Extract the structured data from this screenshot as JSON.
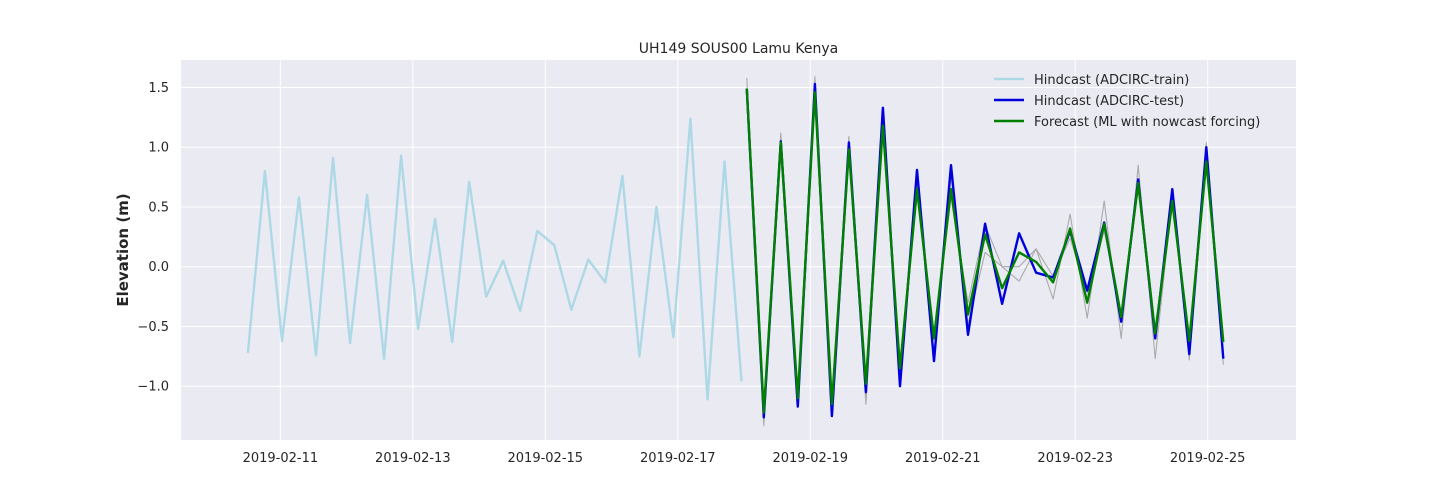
{
  "chart_data": {
    "type": "line",
    "title": "UH149 SOUS00 Lamu Kenya",
    "xlabel": "",
    "ylabel": "Elevation (m)",
    "xlim": [
      "2019-02-09T12:00",
      "2019-02-26T08:00"
    ],
    "ylim": [
      -1.45,
      1.73
    ],
    "x_ticks": [
      "2019-02-11",
      "2019-02-13",
      "2019-02-15",
      "2019-02-17",
      "2019-02-19",
      "2019-02-21",
      "2019-02-23",
      "2019-02-25"
    ],
    "y_ticks": [
      -1.0,
      -0.5,
      0.0,
      0.5,
      1.0,
      1.5
    ],
    "y_tick_labels": [
      "−1.0",
      "−0.5",
      "0.0",
      "0.5",
      "1.0",
      "1.5"
    ],
    "grid": true,
    "legend_position": "upper right",
    "background": "#eaeaf2",
    "series": [
      {
        "name": "Hindcast (ADCIRC-train)",
        "color": "#add8e6",
        "x": [
          "2019-02-10T12:15",
          "2019-02-10T18:25",
          "2019-02-11T00:35",
          "2019-02-11T06:45",
          "2019-02-11T12:55",
          "2019-02-11T19:05",
          "2019-02-12T01:15",
          "2019-02-12T07:25",
          "2019-02-12T13:35",
          "2019-02-12T19:45",
          "2019-02-13T01:55",
          "2019-02-13T08:05",
          "2019-02-13T14:15",
          "2019-02-13T20:25",
          "2019-02-14T02:35",
          "2019-02-14T08:45",
          "2019-02-14T14:55",
          "2019-02-14T21:05",
          "2019-02-15T03:15",
          "2019-02-15T09:25",
          "2019-02-15T15:35",
          "2019-02-15T21:45",
          "2019-02-16T03:55",
          "2019-02-16T10:05",
          "2019-02-16T16:15",
          "2019-02-16T22:25",
          "2019-02-17T04:35",
          "2019-02-17T10:45",
          "2019-02-17T16:55",
          "2019-02-17T23:05"
        ],
        "y": [
          -0.72,
          0.8,
          -0.62,
          0.58,
          -0.74,
          0.91,
          -0.64,
          0.6,
          -0.77,
          0.93,
          -0.52,
          0.4,
          -0.63,
          0.71,
          -0.25,
          0.05,
          -0.37,
          0.3,
          0.18,
          -0.36,
          0.06,
          -0.13,
          0.76,
          -0.75,
          0.5,
          -0.59,
          1.24,
          -1.11,
          0.88,
          -0.96
        ]
      },
      {
        "name": "Hindcast (ADCIRC-test)",
        "color": "#0000dd",
        "x": [
          "2019-02-18T01:00",
          "2019-02-18T07:10",
          "2019-02-18T13:20",
          "2019-02-18T19:30",
          "2019-02-19T01:40",
          "2019-02-19T07:50",
          "2019-02-19T14:00",
          "2019-02-19T20:10",
          "2019-02-20T02:20",
          "2019-02-20T08:30",
          "2019-02-20T14:40",
          "2019-02-20T20:50",
          "2019-02-21T03:00",
          "2019-02-21T09:10",
          "2019-02-21T15:20",
          "2019-02-21T21:30",
          "2019-02-22T03:40",
          "2019-02-22T09:50",
          "2019-02-22T16:00",
          "2019-02-22T22:10",
          "2019-02-23T04:20",
          "2019-02-23T10:30",
          "2019-02-23T16:40",
          "2019-02-23T22:50",
          "2019-02-24T05:00",
          "2019-02-24T11:10",
          "2019-02-24T17:20",
          "2019-02-24T23:30",
          "2019-02-25T05:40"
        ],
        "y": [
          1.49,
          -1.26,
          1.05,
          -1.17,
          1.53,
          -1.25,
          1.04,
          -1.05,
          1.33,
          -1.0,
          0.81,
          -0.79,
          0.85,
          -0.57,
          0.36,
          -0.31,
          0.28,
          -0.05,
          -0.09,
          0.3,
          -0.2,
          0.37,
          -0.46,
          0.73,
          -0.6,
          0.65,
          -0.73,
          1.0,
          -0.77
        ]
      },
      {
        "name": "Forecast (ML with nowcast forcing)",
        "color": "#008000",
        "x": [
          "2019-02-18T01:00",
          "2019-02-18T07:10",
          "2019-02-18T13:20",
          "2019-02-18T19:30",
          "2019-02-19T01:40",
          "2019-02-19T07:50",
          "2019-02-19T14:00",
          "2019-02-19T20:10",
          "2019-02-20T02:20",
          "2019-02-20T08:30",
          "2019-02-20T14:40",
          "2019-02-20T20:50",
          "2019-02-21T03:00",
          "2019-02-21T09:10",
          "2019-02-21T15:20",
          "2019-02-21T21:30",
          "2019-02-22T03:40",
          "2019-02-22T09:50",
          "2019-02-22T16:00",
          "2019-02-22T22:10",
          "2019-02-23T04:20",
          "2019-02-23T10:30",
          "2019-02-23T16:40",
          "2019-02-23T22:50",
          "2019-02-24T05:00",
          "2019-02-24T11:10",
          "2019-02-24T17:20",
          "2019-02-24T23:30",
          "2019-02-25T05:40"
        ],
        "y": [
          1.49,
          -1.22,
          1.04,
          -1.1,
          1.46,
          -1.15,
          0.98,
          -0.98,
          1.18,
          -0.85,
          0.65,
          -0.6,
          0.65,
          -0.4,
          0.27,
          -0.18,
          0.12,
          0.04,
          -0.13,
          0.32,
          -0.3,
          0.36,
          -0.42,
          0.7,
          -0.56,
          0.55,
          -0.62,
          0.88,
          -0.63
        ]
      }
    ],
    "unlabeled_series": [
      {
        "color": "#aaaaaa",
        "x": [
          "2019-02-18T01:00",
          "2019-02-18T07:10",
          "2019-02-18T13:20",
          "2019-02-18T19:30",
          "2019-02-19T01:40",
          "2019-02-19T07:50",
          "2019-02-19T14:00",
          "2019-02-19T20:10",
          "2019-02-20T02:20",
          "2019-02-20T08:30",
          "2019-02-20T14:40",
          "2019-02-20T20:50",
          "2019-02-21T03:00",
          "2019-02-21T09:10",
          "2019-02-21T15:20",
          "2019-02-21T21:30",
          "2019-02-22T03:40",
          "2019-02-22T09:50",
          "2019-02-22T16:00",
          "2019-02-22T22:10",
          "2019-02-23T04:20",
          "2019-02-23T10:30",
          "2019-02-23T16:40",
          "2019-02-23T22:50",
          "2019-02-24T05:00",
          "2019-02-24T11:10",
          "2019-02-24T17:20",
          "2019-02-24T23:30",
          "2019-02-25T05:40"
        ],
        "y": [
          1.58,
          -1.33,
          1.12,
          -1.14,
          1.59,
          -1.18,
          1.09,
          -1.15,
          1.25,
          -0.95,
          0.71,
          -0.72,
          0.76,
          -0.48,
          0.12,
          0.0,
          -0.12,
          0.15,
          -0.27,
          0.44,
          -0.43,
          0.55,
          -0.6,
          0.85,
          -0.77,
          0.58,
          -0.78,
          1.04,
          -0.82
        ]
      },
      {
        "color": "#aaaaaa",
        "x": [
          "2019-02-18T01:00",
          "2019-02-18T07:10",
          "2019-02-18T13:20",
          "2019-02-18T19:30",
          "2019-02-19T01:40",
          "2019-02-19T07:50",
          "2019-02-19T14:00",
          "2019-02-19T20:10",
          "2019-02-20T02:20",
          "2019-02-20T08:30",
          "2019-02-20T14:40",
          "2019-02-20T20:50",
          "2019-02-21T03:00",
          "2019-02-21T09:10",
          "2019-02-21T15:20",
          "2019-02-21T21:30",
          "2019-02-22T03:40",
          "2019-02-22T09:50",
          "2019-02-22T16:00",
          "2019-02-22T22:10",
          "2019-02-23T04:20",
          "2019-02-23T10:30",
          "2019-02-23T16:40",
          "2019-02-23T22:50",
          "2019-02-24T05:00",
          "2019-02-24T11:10",
          "2019-02-24T17:20",
          "2019-02-24T23:30",
          "2019-02-25T05:40"
        ],
        "y": [
          1.46,
          -1.2,
          1.0,
          -1.05,
          1.44,
          -1.12,
          0.95,
          -0.95,
          1.12,
          -0.82,
          0.6,
          -0.55,
          0.58,
          -0.3,
          0.35,
          0.0,
          0.0,
          0.15,
          -0.08,
          0.24,
          -0.22,
          0.3,
          -0.4,
          0.64,
          -0.52,
          0.5,
          -0.6,
          0.84,
          -0.6
        ]
      }
    ]
  }
}
